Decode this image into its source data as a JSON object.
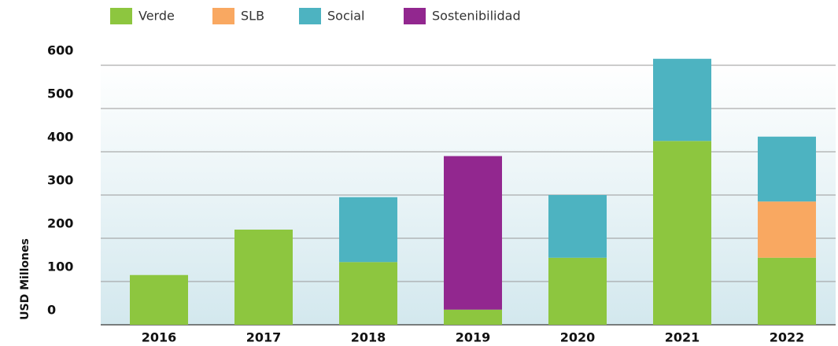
{
  "chart_data": {
    "type": "stacked_bar",
    "y_label": "USD Millones",
    "categories": [
      "2016",
      "2017",
      "2018",
      "2019",
      "2020",
      "2021",
      "2022"
    ],
    "series": [
      {
        "name": "Verde",
        "color": "#8dc63f",
        "values": [
          115,
          220,
          145,
          35,
          155,
          425,
          155
        ]
      },
      {
        "name": "SLB",
        "color": "#f9a861",
        "values": [
          null,
          null,
          null,
          null,
          null,
          null,
          130
        ]
      },
      {
        "name": "Social",
        "color": "#4db3c1",
        "values": [
          null,
          null,
          150,
          null,
          145,
          190,
          150
        ]
      },
      {
        "name": "Sostenibilidad",
        "color": "#92278f",
        "values": [
          null,
          null,
          null,
          355,
          null,
          null,
          null
        ]
      }
    ],
    "ylim": [
      0,
      620
    ],
    "yticks": [
      0,
      100,
      200,
      300,
      400,
      500,
      600
    ],
    "grid": true,
    "legend": "top"
  }
}
